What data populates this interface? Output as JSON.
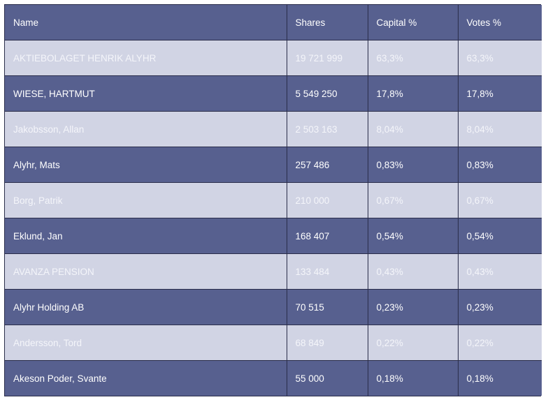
{
  "table": {
    "headers": {
      "name": "Name",
      "shares": "Shares",
      "capital": "Capital %",
      "votes": "Votes %"
    },
    "rows": [
      {
        "name": "AKTIEBOLAGET HENRIK ALYHR",
        "shares": "19 721 999",
        "capital": "63,3%",
        "votes": "63,3%"
      },
      {
        "name": "WIESE, HARTMUT",
        "shares": "5 549 250",
        "capital": "17,8%",
        "votes": "17,8%"
      },
      {
        "name": "Jakobsson, Allan",
        "shares": "2 503 163",
        "capital": "8,04%",
        "votes": "8,04%"
      },
      {
        "name": "Alyhr, Mats",
        "shares": "257 486",
        "capital": "0,83%",
        "votes": "0,83%"
      },
      {
        "name": "Borg, Patrik",
        "shares": "210 000",
        "capital": "0,67%",
        "votes": "0,67%"
      },
      {
        "name": "Eklund, Jan",
        "shares": "168 407",
        "capital": "0,54%",
        "votes": "0,54%"
      },
      {
        "name": "AVANZA PENSION",
        "shares": "133 484",
        "capital": "0,43%",
        "votes": "0,43%"
      },
      {
        "name": "Alyhr Holding AB",
        "shares": "70 515",
        "capital": "0,23%",
        "votes": "0,23%"
      },
      {
        "name": "Andersson, Tord",
        "shares": "68 849",
        "capital": "0,22%",
        "votes": "0,22%"
      },
      {
        "name": "Akeson Poder, Svante",
        "shares": "55 000",
        "capital": "0,18%",
        "votes": "0,18%"
      }
    ]
  },
  "colors": {
    "dark_row": "#57608f",
    "light_row": "#d1d4e4",
    "border": "#2a2d4a",
    "dark_text": "#ffffff",
    "light_text": "#f4f5fa"
  }
}
